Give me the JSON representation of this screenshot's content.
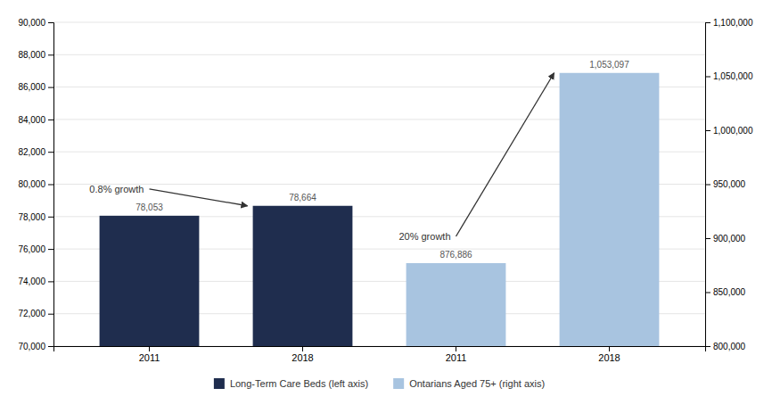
{
  "chart_data": {
    "type": "bar",
    "categories": [
      "2011",
      "2018",
      "2011",
      "2018"
    ],
    "series": [
      {
        "name": "Long-Term Care Beds (left axis)",
        "color": "#1f2d4e",
        "values": [
          78053,
          78664,
          null,
          null
        ],
        "value_labels": [
          "78,053",
          "78,664",
          null,
          null
        ]
      },
      {
        "name": "Ontarians Aged 75+ (right axis)",
        "color": "#a8c4e0",
        "axis": "y2",
        "values": [
          null,
          null,
          876886,
          1053097
        ],
        "value_labels": [
          null,
          null,
          "876,886",
          "1,053,097"
        ]
      }
    ],
    "ylim": [
      70000,
      90000
    ],
    "yticks": [
      {
        "value": 70000,
        "label": "70,000"
      },
      {
        "value": 72000,
        "label": "72,000"
      },
      {
        "value": 74000,
        "label": "74,000"
      },
      {
        "value": 76000,
        "label": "76,000"
      },
      {
        "value": 78000,
        "label": "78,000"
      },
      {
        "value": 80000,
        "label": "80,000"
      },
      {
        "value": 82000,
        "label": "82,000"
      },
      {
        "value": 84000,
        "label": "84,000"
      },
      {
        "value": 86000,
        "label": "86,000"
      },
      {
        "value": 88000,
        "label": "88,000"
      },
      {
        "value": 90000,
        "label": "90,000"
      }
    ],
    "y2lim": [
      800000,
      1100000
    ],
    "y2ticks": [
      {
        "value": 800000,
        "label": "800,000"
      },
      {
        "value": 850000,
        "label": "850,000"
      },
      {
        "value": 900000,
        "label": "900,000"
      },
      {
        "value": 950000,
        "label": "950,000"
      },
      {
        "value": 1000000,
        "label": "1,000,000"
      },
      {
        "value": 1050000,
        "label": "1,050,000"
      },
      {
        "value": 1100000,
        "label": "1,100,000"
      }
    ],
    "grid": true,
    "legend": "bottom",
    "data_labels": true,
    "annotations": [
      "0.8% growth",
      "20% growth"
    ]
  }
}
